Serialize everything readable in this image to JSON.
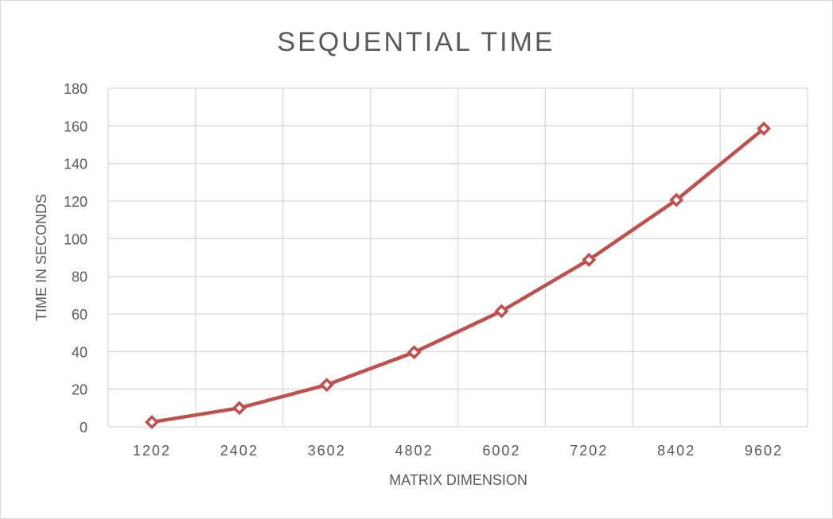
{
  "chart_data": {
    "type": "line",
    "title": "SEQUENTIAL TIME",
    "xlabel": "MATRIX DIMENSION",
    "ylabel": "TIME IN SECONDS",
    "categories": [
      "1202",
      "2402",
      "3602",
      "4802",
      "6002",
      "7202",
      "8402",
      "9602"
    ],
    "series": [
      {
        "values": [
          2.5,
          10,
          22.3,
          39.6,
          61.5,
          88.8,
          120.6,
          158.5
        ]
      }
    ],
    "ylim": [
      0,
      180
    ],
    "yticks": [
      0,
      20,
      40,
      60,
      80,
      100,
      120,
      140,
      160,
      180
    ],
    "grid": true,
    "legend": "none",
    "colors": {
      "line": "#c0504d",
      "grid": "#d9d9d9",
      "text": "#595959"
    }
  }
}
